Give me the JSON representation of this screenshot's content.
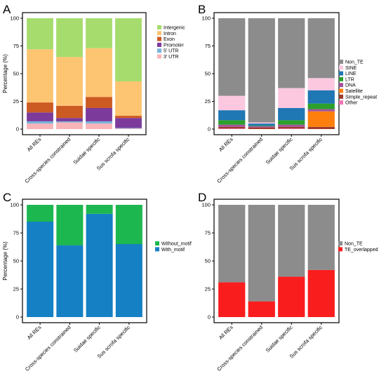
{
  "colors": {
    "Intergenic": "#a6dc6e",
    "Intron": "#fdc472",
    "Exon": "#cc5a23",
    "Promoter": "#7c3b9b",
    "5' UTR": "#79b3de",
    "3' UTR": "#f8b4b6",
    "Non_TE": "#8c8c8c",
    "SINE": "#fbc8e0",
    "LINE": "#1f77b4",
    "LTR": "#2ca02c",
    "DNA": "#a2539d",
    "Satellite": "#ff7f0e",
    "Simple_repeat": "#9e3b2b",
    "Other": "#f274b6",
    "Without_motif": "#1db74f",
    "With_motif": "#1580c4",
    "TE_overlapped": "#fa1d1d"
  },
  "chart_data": [
    {
      "panel": "A",
      "type": "bar",
      "stacked": true,
      "ylabel": "Percentage (%)",
      "ylim": [
        0,
        100
      ],
      "yticks": [
        "0",
        "25",
        "50",
        "75",
        "100"
      ],
      "categories": [
        "All REs",
        "Cross-species constrained",
        "Suidae specific",
        "Sus scrofa specific"
      ],
      "legend": [
        "Intergenic",
        "Intron",
        "Exon",
        "Promoter",
        "5' UTR",
        "3' UTR"
      ],
      "legend_position": "right",
      "series": [
        {
          "name": "3' UTR",
          "values": [
            5,
            6,
            5,
            0.5
          ]
        },
        {
          "name": "5' UTR",
          "values": [
            2,
            1,
            2,
            0.5
          ]
        },
        {
          "name": "Promoter",
          "values": [
            8,
            3,
            12,
            9
          ]
        },
        {
          "name": "Exon",
          "values": [
            9,
            11,
            10,
            2
          ]
        },
        {
          "name": "Intron",
          "values": [
            48,
            44,
            44,
            31
          ]
        },
        {
          "name": "Intergenic",
          "values": [
            28,
            35,
            27,
            57
          ]
        }
      ]
    },
    {
      "panel": "B",
      "type": "bar",
      "stacked": true,
      "ylabel": "",
      "ylim": [
        0,
        100
      ],
      "yticks": [
        "0",
        "25",
        "50",
        "75",
        "100"
      ],
      "categories": [
        "All REs",
        "Cross-species constrained",
        "Suidae specific",
        "Sus scrofa specific"
      ],
      "legend": [
        "Non_TE",
        "SINE",
        "LINE",
        "LTR",
        "DNA",
        "Satellite",
        "Simple_repeat",
        "Other"
      ],
      "legend_position": "right",
      "series": [
        {
          "name": "Other",
          "values": [
            0.5,
            0,
            0.5,
            0
          ]
        },
        {
          "name": "Simple_repeat",
          "values": [
            1.5,
            1.5,
            1.5,
            2
          ]
        },
        {
          "name": "Satellite",
          "values": [
            0,
            0,
            0,
            14
          ]
        },
        {
          "name": "DNA",
          "values": [
            2,
            1,
            2,
            2
          ]
        },
        {
          "name": "LTR",
          "values": [
            4,
            0.5,
            4,
            5
          ]
        },
        {
          "name": "LINE",
          "values": [
            9,
            2,
            11,
            12
          ]
        },
        {
          "name": "SINE",
          "values": [
            13,
            1,
            18,
            11
          ]
        },
        {
          "name": "Non_TE",
          "values": [
            70,
            94,
            63,
            54
          ]
        }
      ]
    },
    {
      "panel": "C",
      "type": "bar",
      "stacked": true,
      "ylabel": "Percentage (%)",
      "ylim": [
        0,
        100
      ],
      "yticks": [
        "0",
        "25",
        "50",
        "75",
        "100"
      ],
      "categories": [
        "All REs",
        "Cross-species constrained",
        "Suidae specific",
        "Sus scrofa specific"
      ],
      "legend": [
        "Without_motif",
        "With_motif"
      ],
      "legend_position": "right",
      "series": [
        {
          "name": "With_motif",
          "values": [
            85,
            64,
            92,
            65
          ]
        },
        {
          "name": "Without_motif",
          "values": [
            15,
            36,
            8,
            35
          ]
        }
      ]
    },
    {
      "panel": "D",
      "type": "bar",
      "stacked": true,
      "ylabel": "",
      "ylim": [
        0,
        100
      ],
      "yticks": [
        "0",
        "25",
        "50",
        "75",
        "100"
      ],
      "categories": [
        "All REs",
        "Cross-species constrained",
        "Suidae specific",
        "Sus scrofa specific"
      ],
      "legend": [
        "Non_TE",
        "TE_overlapped"
      ],
      "legend_position": "right",
      "series": [
        {
          "name": "TE_overlapped",
          "values": [
            31,
            14,
            36,
            42
          ]
        },
        {
          "name": "Non_TE",
          "values": [
            69,
            86,
            64,
            58
          ]
        }
      ]
    }
  ]
}
